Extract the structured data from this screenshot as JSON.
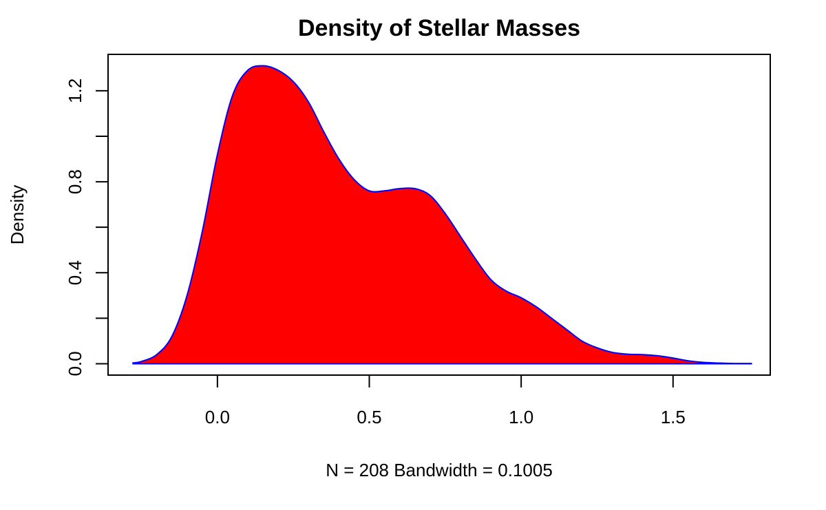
{
  "chart_data": {
    "type": "area",
    "title": "Density of Stellar Masses",
    "xlabel": "N = 208   Bandwidth = 0.1005",
    "ylabel": "Density",
    "xlim": [
      -0.36,
      1.82
    ],
    "ylim": [
      -0.05,
      1.36
    ],
    "x_ticks": [
      0.0,
      0.5,
      1.0,
      1.5
    ],
    "x_tick_labels": [
      "0.0",
      "0.5",
      "1.0",
      "1.5"
    ],
    "y_ticks": [
      0.0,
      0.2,
      0.4,
      0.6,
      0.8,
      1.0,
      1.2
    ],
    "y_tick_labels": [
      "0.0",
      "",
      "0.4",
      "",
      "0.8",
      "",
      "1.2"
    ],
    "grid": false,
    "fill_color": "#ff0000",
    "line_color": "#0000ff",
    "baseline": 0,
    "series": [
      {
        "x": [
          -0.28,
          -0.25,
          -0.2,
          -0.15,
          -0.1,
          -0.05,
          0.0,
          0.05,
          0.1,
          0.15,
          0.2,
          0.25,
          0.3,
          0.35,
          0.4,
          0.45,
          0.5,
          0.55,
          0.6,
          0.65,
          0.7,
          0.75,
          0.8,
          0.85,
          0.9,
          0.95,
          1.0,
          1.05,
          1.1,
          1.15,
          1.2,
          1.25,
          1.3,
          1.35,
          1.4,
          1.45,
          1.5,
          1.55,
          1.6,
          1.65,
          1.7,
          1.76
        ],
        "values": [
          0.003,
          0.01,
          0.04,
          0.12,
          0.3,
          0.58,
          0.92,
          1.18,
          1.29,
          1.31,
          1.29,
          1.24,
          1.15,
          1.02,
          0.9,
          0.81,
          0.76,
          0.76,
          0.77,
          0.77,
          0.74,
          0.66,
          0.56,
          0.46,
          0.37,
          0.32,
          0.29,
          0.25,
          0.2,
          0.15,
          0.1,
          0.07,
          0.05,
          0.042,
          0.04,
          0.035,
          0.025,
          0.013,
          0.006,
          0.003,
          0.001,
          0.001
        ]
      }
    ]
  }
}
